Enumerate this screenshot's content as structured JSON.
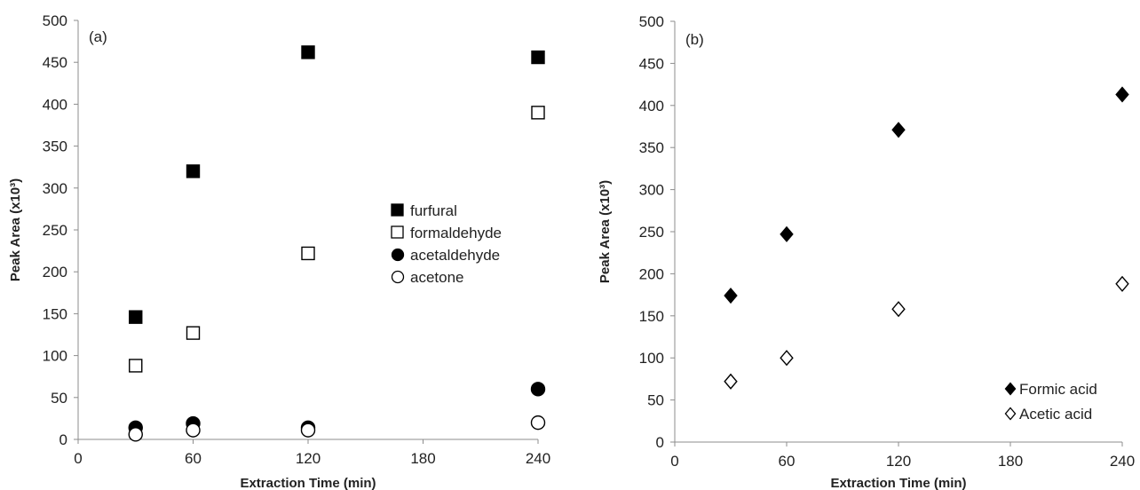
{
  "chart_data": [
    {
      "type": "scatter",
      "panel_label": "(a)",
      "xlabel": "Extraction Time (min)",
      "ylabel": "Peak Area (x10³)",
      "xlim": [
        0,
        240
      ],
      "ylim": [
        0,
        500
      ],
      "xticks": [
        0,
        60,
        120,
        180,
        240
      ],
      "yticks": [
        0,
        50,
        100,
        150,
        200,
        250,
        300,
        350,
        400,
        450,
        500
      ],
      "grid": false,
      "legend_position": "center-right",
      "series": [
        {
          "name": "furfural",
          "marker": "square",
          "filled": true,
          "color": "#000000",
          "x": [
            30,
            60,
            120,
            240
          ],
          "y": [
            146,
            320,
            462,
            456
          ]
        },
        {
          "name": "formaldehyde",
          "marker": "square",
          "filled": false,
          "color": "#000000",
          "x": [
            30,
            60,
            120,
            240
          ],
          "y": [
            88,
            127,
            222,
            390
          ]
        },
        {
          "name": "acetaldehyde",
          "marker": "circle",
          "filled": true,
          "color": "#000000",
          "x": [
            30,
            60,
            120,
            240
          ],
          "y": [
            14,
            19,
            14,
            60
          ]
        },
        {
          "name": "acetone",
          "marker": "circle",
          "filled": false,
          "color": "#000000",
          "x": [
            30,
            60,
            120,
            240
          ],
          "y": [
            6,
            11,
            11,
            20
          ]
        }
      ]
    },
    {
      "type": "scatter",
      "panel_label": "(b)",
      "xlabel": "Extraction Time (min)",
      "ylabel": "Peak Area (x10³)",
      "xlim": [
        0,
        240
      ],
      "ylim": [
        0,
        500
      ],
      "xticks": [
        0,
        60,
        120,
        180,
        240
      ],
      "yticks": [
        0,
        50,
        100,
        150,
        200,
        250,
        300,
        350,
        400,
        450,
        500
      ],
      "grid": false,
      "legend_position": "bottom-right",
      "series": [
        {
          "name": "Formic acid",
          "marker": "diamond",
          "filled": true,
          "color": "#000000",
          "x": [
            30,
            60,
            120,
            240
          ],
          "y": [
            174,
            247,
            371,
            413
          ]
        },
        {
          "name": "Acetic acid",
          "marker": "diamond",
          "filled": false,
          "color": "#000000",
          "x": [
            30,
            60,
            120,
            240
          ],
          "y": [
            72,
            100,
            158,
            188
          ]
        }
      ]
    }
  ]
}
